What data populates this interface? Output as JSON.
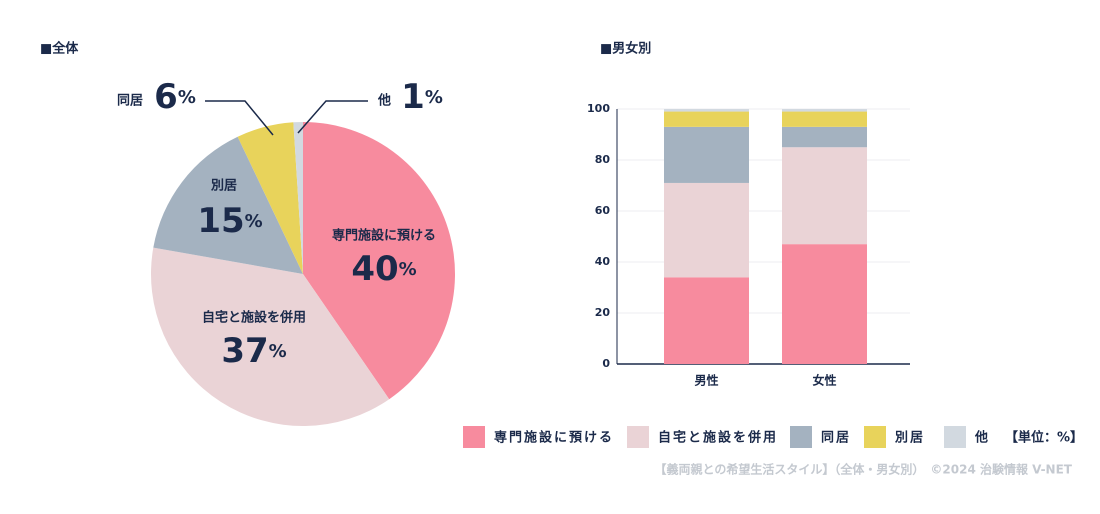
{
  "chart_data": [
    {
      "type": "pie",
      "title": "■全体",
      "unit": "%",
      "categories": [
        "専門施設に預ける",
        "自宅と施設を併用",
        "別居",
        "同居",
        "他"
      ],
      "values": [
        40,
        37,
        15,
        6,
        1
      ],
      "colors": [
        "#f78b9e",
        "#ead3d6",
        "#a4b2c0",
        "#e8d35b",
        "#d2d9e0"
      ]
    },
    {
      "type": "bar",
      "stacked": true,
      "title": "■男女別",
      "categories": [
        "男性",
        "女性"
      ],
      "series": [
        {
          "name": "専門施設に預ける",
          "color": "#f78b9e",
          "values": [
            34,
            47
          ]
        },
        {
          "name": "自宅と施設を併用",
          "color": "#ead3d6",
          "values": [
            37,
            38
          ]
        },
        {
          "name": "同居",
          "color": "#a4b2c0",
          "values": [
            22,
            8
          ]
        },
        {
          "name": "別居",
          "color": "#e8d35b",
          "values": [
            6,
            6
          ]
        },
        {
          "name": "他",
          "color": "#d2d9e0",
          "values": [
            1,
            1
          ]
        }
      ],
      "ylim": [
        0,
        100
      ],
      "yticks": [
        0,
        20,
        40,
        60,
        80,
        100
      ],
      "grid": true,
      "legend_note": "【単位：%】"
    }
  ],
  "footer": "【義両親との希望生活スタイル】（全体・男女別）　©2024 治験情報 V-NET"
}
